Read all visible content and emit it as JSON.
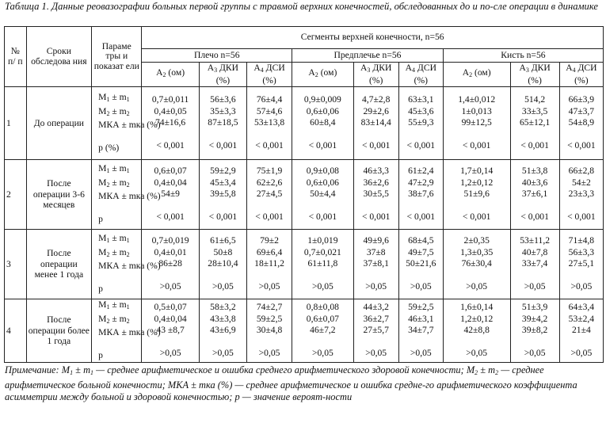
{
  "caption": "Таблица 1. Данные реовазографии больных первой группы с травмой верхних конечностей, обследованных до и по-сле операции в динамике",
  "header": {
    "no": "№ п/ п",
    "period": "Сроки обследова ния",
    "params": "Параме тры и показат ели",
    "segments": "Сегменты верхней конечности, n=56",
    "groups": [
      "Плечо n=56",
      "Предплечье n=56",
      "Кисть n=56"
    ],
    "sub_a2": "А2 (ом)",
    "sub_a3": "А3 ДКИ (%)",
    "sub_a4": "А4 ДСИ (%)"
  },
  "rows": [
    {
      "num": "1",
      "period": "До операции",
      "params": [
        "M1 ± m1",
        "M2 ± m2",
        "МКА ± mка (%)",
        "",
        "p (%)"
      ],
      "shoulder": {
        "a2": [
          "0,7±0,011",
          "0,4±0,05",
          "74±16,6",
          "",
          "< 0,001"
        ],
        "a3": [
          "56±3,6",
          "35±3,3",
          "87±18,5",
          "",
          "< 0,001"
        ],
        "a4": [
          "76±4,4",
          "57±4,6",
          "53±13,8",
          "",
          "< 0,001"
        ]
      },
      "forearm": {
        "a2": [
          "0,9±0,009",
          "0,6±0,06",
          "60±8,4",
          "",
          "< 0,001"
        ],
        "a3": [
          "4,7±2,8",
          "29±2,6",
          "83±14,4",
          "",
          "< 0,001"
        ],
        "a4": [
          "63±3,1",
          "45±3,6",
          "55±9,3",
          "",
          "< 0,001"
        ]
      },
      "hand": {
        "a2": [
          "1,4±0,012",
          "1±0,013",
          "99±12,5",
          "",
          "< 0,001"
        ],
        "a3": [
          "514,2",
          "33±3,5",
          "65±12,1",
          "",
          "< 0,001"
        ],
        "a4": [
          "66±3,9",
          "47±3,7",
          "54±8,9",
          "",
          "< 0,001"
        ]
      }
    },
    {
      "num": "2",
      "period": "После операции 3-6 месяцев",
      "params": [
        "M1 ± m1",
        "M2 ± m2",
        "МКА ± mка (%)",
        "",
        "p"
      ],
      "shoulder": {
        "a2": [
          "0,6±0,07",
          "0,4±0,04",
          "54±9",
          "",
          "< 0,001"
        ],
        "a3": [
          "59±2,9",
          "45±3,4",
          "39±5,8",
          "",
          "< 0,001"
        ],
        "a4": [
          "75±1,9",
          "62±2,6",
          "27±4,5",
          "",
          "< 0,001"
        ]
      },
      "forearm": {
        "a2": [
          "0,9±0,08",
          "0,6±0,06",
          "50±4,4",
          "",
          "< 0,001"
        ],
        "a3": [
          "46±3,3",
          "36±2,6",
          "30±5,5",
          "",
          "< 0,001"
        ],
        "a4": [
          "61±2,4",
          "47±2,9",
          "38±7,6",
          "",
          "< 0,001"
        ]
      },
      "hand": {
        "a2": [
          "1,7±0,14",
          "1,2±0,12",
          "51±9,6",
          "",
          "< 0,001"
        ],
        "a3": [
          "51±3,8",
          "40±3,6",
          "37±6,1",
          "",
          "< 0,001"
        ],
        "a4": [
          "66±2,8",
          "54±2",
          "23±3,3",
          "",
          "< 0,001"
        ]
      }
    },
    {
      "num": "3",
      "period": "После операции менее 1 года",
      "params": [
        "M1 ± m1",
        "M2 ± m2",
        "МКА ± mка (%)",
        "",
        "p"
      ],
      "shoulder": {
        "a2": [
          "0,7±0,019",
          "0,4±0,01",
          "86±28",
          "",
          ">0,05"
        ],
        "a3": [
          "61±6,5",
          "50±8",
          "28±10,4",
          "",
          ">0,05"
        ],
        "a4": [
          "79±2",
          "69±6,4",
          "18±11,2",
          "",
          ">0,05"
        ]
      },
      "forearm": {
        "a2": [
          "1±0,019",
          "0,7±0,021",
          "61±11,8",
          "",
          ">0,05"
        ],
        "a3": [
          "49±9,6",
          "37±8",
          "37±8,1",
          "",
          ">0,05"
        ],
        "a4": [
          "68±4,5",
          "49±7,5",
          "50±21,6",
          "",
          ">0,05"
        ]
      },
      "hand": {
        "a2": [
          "2±0,35",
          "1,3±0,35",
          "76±30,4",
          "",
          ">0,05"
        ],
        "a3": [
          "53±11,2",
          "40±7,8",
          "33±7,4",
          "",
          ">0,05"
        ],
        "a4": [
          "71±4,8",
          "56±3,3",
          "27±5,1",
          "",
          ">0,05"
        ]
      }
    },
    {
      "num": "4",
      "period": "После операции более 1 года",
      "params": [
        "M1 ± m1",
        "M2 ± m2",
        "МКА ± mка (%)",
        "",
        "p"
      ],
      "shoulder": {
        "a2": [
          "0,5±0,07",
          "0,4±0,04",
          "43 ±8,7",
          "",
          ">0,05"
        ],
        "a3": [
          "58±3,2",
          "43±3,8",
          "43±6,9",
          "",
          ">0,05"
        ],
        "a4": [
          "74±2,7",
          "59±2,5",
          "30±4,8",
          "",
          ">0,05"
        ]
      },
      "forearm": {
        "a2": [
          "0,8±0,08",
          "0,6±0,07",
          "46±7,2",
          "",
          ">0,05"
        ],
        "a3": [
          "44±3,2",
          "36±2,7",
          "27±5,7",
          "",
          ">0,05"
        ],
        "a4": [
          "59±2,5",
          "46±3,1",
          "34±7,7",
          "",
          ">0,05"
        ]
      },
      "hand": {
        "a2": [
          "1,6±0,14",
          "1,2±0,12",
          "42±8,8",
          "",
          ">0,05"
        ],
        "a3": [
          "51±3,9",
          "39±4,2",
          "39±8,2",
          "",
          ">0,05"
        ],
        "a4": [
          "64±3,4",
          "53±2,4",
          "21±4",
          "",
          ">0,05"
        ]
      }
    }
  ],
  "note": "Примечание: M1 ± m1 — среднее арифметическое и ошибка среднего арифметического здоровой конечности; M2 ± m2 — среднее арифметическое больной конечности; МКА ± mка (%) — среднее арифметическое и ошибка средне-го арифметического коэффициента асимметрии между больной и здоровой конечностью; p — значение вероят-ности"
}
